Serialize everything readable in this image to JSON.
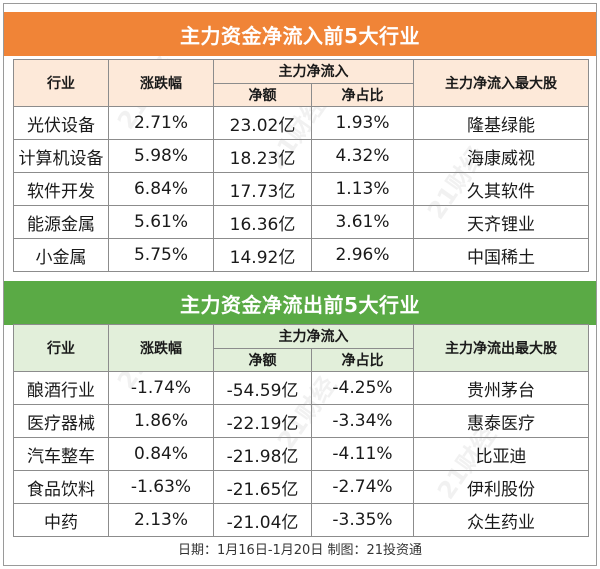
{
  "inflow": {
    "title": "主力资金净流入前5大行业",
    "headers": {
      "industry": "行业",
      "change": "涨跌幅",
      "group": "主力净流入",
      "amount": "净额",
      "ratio": "净占比",
      "top_stock": "主力净流入最大股"
    },
    "rows": [
      {
        "industry": "光伏设备",
        "change": "2.71%",
        "amount": "23.02亿",
        "ratio": "1.93%",
        "top_stock": "隆基绿能"
      },
      {
        "industry": "计算机设备",
        "change": "5.98%",
        "amount": "18.23亿",
        "ratio": "4.32%",
        "top_stock": "海康威视"
      },
      {
        "industry": "软件开发",
        "change": "6.84%",
        "amount": "17.73亿",
        "ratio": "1.13%",
        "top_stock": "久其软件"
      },
      {
        "industry": "能源金属",
        "change": "5.61%",
        "amount": "16.36亿",
        "ratio": "3.61%",
        "top_stock": "天齐锂业"
      },
      {
        "industry": "小金属",
        "change": "5.75%",
        "amount": "14.92亿",
        "ratio": "2.96%",
        "top_stock": "中国稀土"
      }
    ]
  },
  "outflow": {
    "title": "主力资金净流出前5大行业",
    "headers": {
      "industry": "行业",
      "change": "涨跌幅",
      "group": "主力净流入",
      "amount": "净额",
      "ratio": "净占比",
      "top_stock": "主力净流出最大股"
    },
    "rows": [
      {
        "industry": "酿酒行业",
        "change": "-1.74%",
        "amount": "-54.59亿",
        "ratio": "-4.25%",
        "top_stock": "贵州茅台"
      },
      {
        "industry": "医疗器械",
        "change": "1.86%",
        "amount": "-22.19亿",
        "ratio": "-3.34%",
        "top_stock": "惠泰医疗"
      },
      {
        "industry": "汽车整车",
        "change": "0.84%",
        "amount": "-21.98亿",
        "ratio": "-4.11%",
        "top_stock": "比亚迪"
      },
      {
        "industry": "食品饮料",
        "change": "-1.63%",
        "amount": "-21.65亿",
        "ratio": "-2.74%",
        "top_stock": "伊利股份"
      },
      {
        "industry": "中药",
        "change": "2.13%",
        "amount": "-21.04亿",
        "ratio": "-3.35%",
        "top_stock": "众生药业"
      }
    ]
  },
  "footer": "日期：1月16日-1月20日 制图：21投资通",
  "watermark": "21财经",
  "colors": {
    "inflow_title_bg": "#f08437",
    "inflow_header_bg": "#fde9d9",
    "outflow_title_bg": "#5aaa45",
    "outflow_header_bg": "#e2efda",
    "border": "#8c8c8c"
  }
}
